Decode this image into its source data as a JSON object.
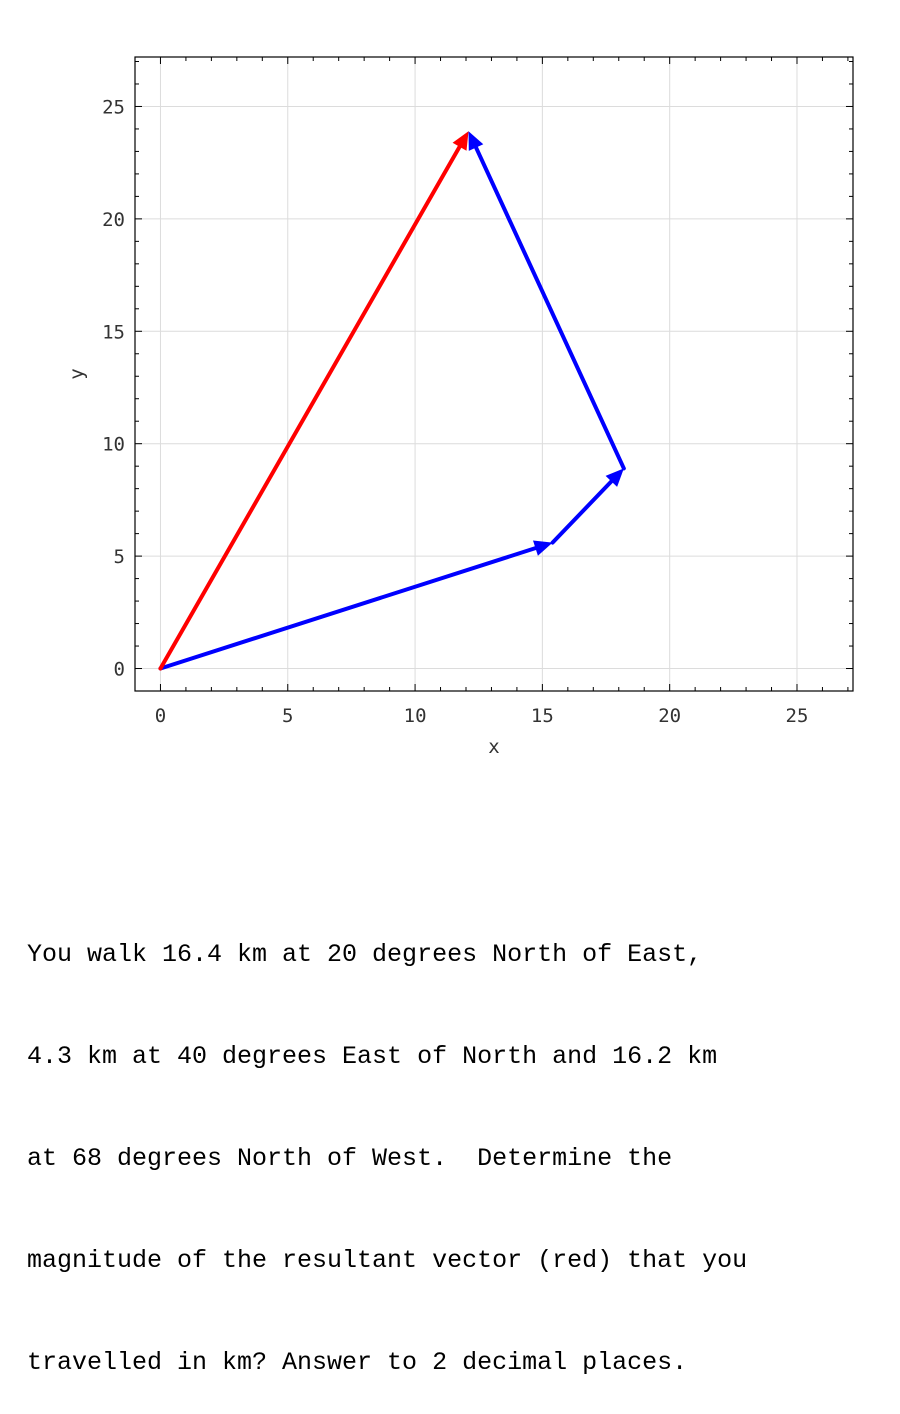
{
  "chart_data": {
    "type": "line",
    "title": "",
    "xlabel": "x",
    "ylabel": "y",
    "xlim": [
      -1,
      27.2
    ],
    "ylim": [
      -1,
      27.2
    ],
    "xticks": [
      0,
      5,
      10,
      15,
      20,
      25
    ],
    "yticks": [
      0,
      5,
      10,
      15,
      20,
      25
    ],
    "grid": true,
    "series": [
      {
        "color": "#0000ff",
        "arrows": [
          {
            "from": [
              0,
              0
            ],
            "to": [
              15.4,
              5.6
            ]
          },
          {
            "from": [
              15.4,
              5.6
            ],
            "to": [
              18.2,
              8.9
            ]
          },
          {
            "from": [
              18.2,
              8.9
            ],
            "to": [
              12.1,
              23.9
            ]
          }
        ]
      },
      {
        "color": "#ff0000",
        "arrows": [
          {
            "from": [
              0,
              0
            ],
            "to": [
              12.1,
              23.9
            ]
          }
        ]
      }
    ]
  },
  "question": {
    "lines": [
      "You walk 16.4 km at 20 degrees North of East,",
      "4.3 km at 40 degrees East of North and 16.2 km",
      "at 68 degrees North of West.  Determine the",
      "magnitude of the resultant vector (red) that you",
      "travelled in km? Answer to 2 decimal places."
    ]
  }
}
